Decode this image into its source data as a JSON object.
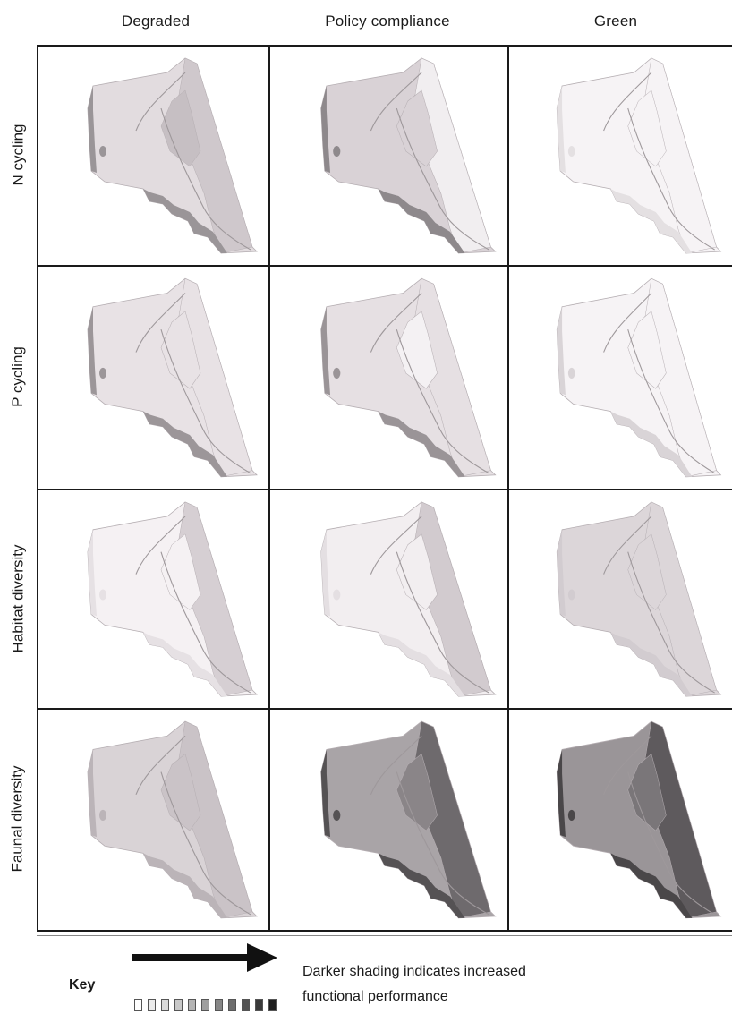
{
  "columns": [
    "Degraded",
    "Policy compliance",
    "Green"
  ],
  "rows": [
    "N cycling",
    "P cycling",
    "Habitat diversity",
    "Faunal diversity"
  ],
  "key": {
    "label": "Key",
    "description_line1": "Darker shading indicates increased",
    "description_line2": "functional performance",
    "swatch_colors": [
      "#ffffff",
      "#ececec",
      "#dadada",
      "#c8c8c8",
      "#b4b4b4",
      "#9e9e9e",
      "#878787",
      "#6e6e6e",
      "#545454",
      "#3a3a3a",
      "#1e1e1e"
    ]
  },
  "maps": [
    [
      {
        "base": "#e2dcdf",
        "east": "#cfc8cc",
        "core": "#c6bfc3",
        "edge": "#9a9598"
      },
      {
        "base": "#d9d2d6",
        "east": "#f1eef0",
        "core": "#d9d2d6",
        "edge": "#8e898c"
      },
      {
        "base": "#f6f3f5",
        "east": "#f6f3f5",
        "core": "#f6f3f5",
        "edge": "#e4e0e2"
      }
    ],
    [
      {
        "base": "#e8e2e5",
        "east": "#e8e2e5",
        "core": "#e8e2e5",
        "edge": "#9c9699"
      },
      {
        "base": "#e6e0e3",
        "east": "#e6e0e3",
        "core": "#f4f1f3",
        "edge": "#9a9497"
      },
      {
        "base": "#f6f3f5",
        "east": "#f6f3f5",
        "core": "#f6f3f5",
        "edge": "#d9d4d7"
      }
    ],
    [
      {
        "base": "#f5f1f3",
        "east": "#d6cfd3",
        "core": "#f5f1f3",
        "edge": "#e6e1e4"
      },
      {
        "base": "#f2eef0",
        "east": "#d2cbcf",
        "core": "#f2eef0",
        "edge": "#e4dfe2"
      },
      {
        "base": "#dcd6d9",
        "east": "#dcd6d9",
        "core": "#dcd6d9",
        "edge": "#d2ccd0"
      }
    ],
    [
      {
        "base": "#d9d3d6",
        "east": "#cac3c7",
        "core": "#cac3c7",
        "edge": "#bbb4b8"
      },
      {
        "base": "#a9a4a7",
        "east": "#6e6a6d",
        "core": "#8a8588",
        "edge": "#555254"
      },
      {
        "base": "#9a9598",
        "east": "#5e5a5d",
        "core": "#7a7679",
        "edge": "#4a4749"
      }
    ]
  ]
}
